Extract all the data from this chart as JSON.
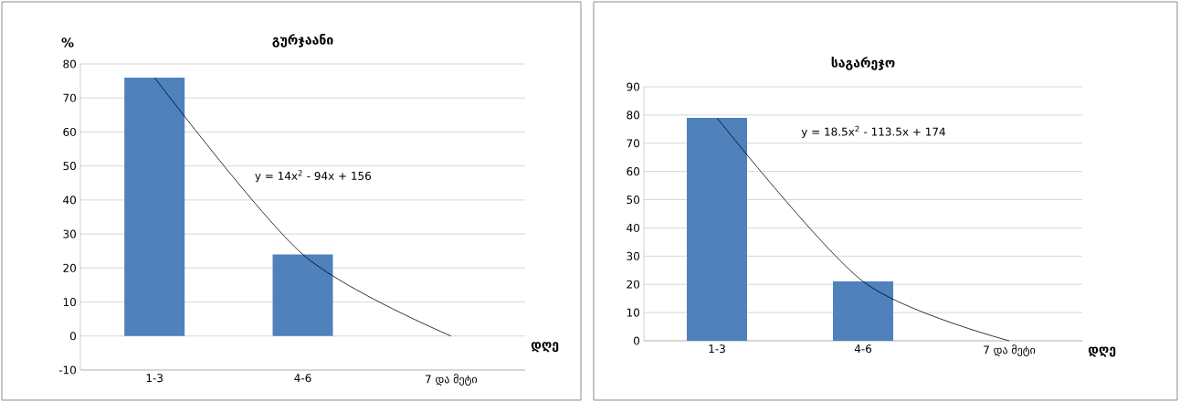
{
  "chart_data": [
    {
      "type": "bar",
      "title": "გურჯაანი",
      "ylabel": "%",
      "xlabel": "დღე",
      "categories": [
        "1-3",
        "4-6",
        "7 და მეტი"
      ],
      "series": [
        {
          "color": "#4f81bd",
          "values": [
            76,
            24,
            0
          ]
        },
        {
          "type": "line",
          "color": "#000000",
          "values": [
            76,
            24,
            0
          ]
        }
      ],
      "ylim": [
        -10,
        80
      ],
      "yticks": [
        -10,
        0,
        10,
        20,
        30,
        40,
        50,
        60,
        70,
        80
      ],
      "grid": "y",
      "annotations": [
        "y = 14x$^{2}$ - 94x + 156"
      ]
    },
    {
      "type": "bar",
      "title": "საგარეჯო",
      "xlabel": "დღე",
      "categories": [
        "1-3",
        "4-6",
        "7 და მეტი"
      ],
      "series": [
        {
          "color": "#4f81bd",
          "values": [
            79,
            21,
            0
          ]
        },
        {
          "type": "line",
          "color": "#000000",
          "values": [
            79,
            21,
            0
          ]
        }
      ],
      "ylim": [
        0,
        90
      ],
      "yticks": [
        0,
        10,
        20,
        30,
        40,
        50,
        60,
        70,
        80,
        90
      ],
      "grid": "y",
      "annotations": [
        "y = 18.5x$^{2}$ - 113.5x + 174"
      ]
    }
  ]
}
